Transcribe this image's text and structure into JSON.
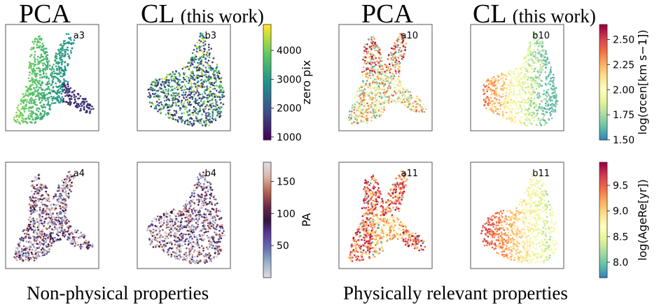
{
  "column_titles": [
    {
      "main": "PCA",
      "sub": ""
    },
    {
      "main": "CL",
      "sub": "(this work)"
    },
    {
      "main": "PCA",
      "sub": ""
    },
    {
      "main": "CL",
      "sub": "(this work)"
    }
  ],
  "captions": {
    "left": "Non-physical properties",
    "right": "Physically relevant properties"
  },
  "chart_data": [
    {
      "type": "scatter",
      "panel": "a3",
      "method": "PCA",
      "property": "zero pix",
      "shape": "pca",
      "colormap": "viridis",
      "clim": [
        900,
        4900
      ]
    },
    {
      "type": "scatter",
      "panel": "b3",
      "method": "CL",
      "property": "zero pix",
      "shape": "cl",
      "colormap": "viridis",
      "clim": [
        900,
        4900
      ]
    },
    {
      "type": "scatter",
      "panel": "a10",
      "method": "PCA",
      "property": "log(σ_cen [km s^-1])",
      "shape": "pca",
      "colormap": "spectral",
      "clim": [
        1.5,
        2.65
      ]
    },
    {
      "type": "scatter",
      "panel": "b10",
      "method": "CL",
      "property": "log(σ_cen [km s^-1])",
      "shape": "cl",
      "colormap": "spectral",
      "clim": [
        1.5,
        2.65
      ]
    },
    {
      "type": "scatter",
      "panel": "a4",
      "method": "PCA",
      "property": "PA",
      "shape": "pca",
      "colormap": "twilight",
      "clim": [
        0,
        180
      ]
    },
    {
      "type": "scatter",
      "panel": "b4",
      "method": "CL",
      "property": "PA",
      "shape": "cl",
      "colormap": "twilight",
      "clim": [
        0,
        180
      ]
    },
    {
      "type": "scatter",
      "panel": "a11",
      "method": "PCA",
      "property": "log(Age_Re [yr])",
      "shape": "pca",
      "colormap": "spectral",
      "clim": [
        7.7,
        9.95
      ]
    },
    {
      "type": "scatter",
      "panel": "b11",
      "method": "CL",
      "property": "log(Age_Re [yr])",
      "shape": "cl",
      "colormap": "spectral",
      "clim": [
        7.7,
        9.95
      ]
    }
  ],
  "colorbars": [
    {
      "id": "zero-pix",
      "label": "zero pix",
      "ticks": [
        "1000",
        "2000",
        "3000",
        "4000"
      ],
      "tick_values": [
        1000,
        2000,
        3000,
        4000
      ],
      "range": [
        900,
        4900
      ],
      "colormap": "viridis"
    },
    {
      "id": "sigma",
      "label": "log(σcen[km s−1])",
      "ticks": [
        "1.50",
        "1.75",
        "2.00",
        "2.25",
        "2.50"
      ],
      "tick_values": [
        1.5,
        1.75,
        2.0,
        2.25,
        2.5
      ],
      "range": [
        1.5,
        2.65
      ],
      "colormap": "spectral"
    },
    {
      "id": "pa",
      "label": "PA",
      "ticks": [
        "50",
        "100",
        "150"
      ],
      "tick_values": [
        50,
        100,
        150
      ],
      "range": [
        0,
        180
      ],
      "colormap": "twilight"
    },
    {
      "id": "age",
      "label": "log(AgeRe[yr])",
      "ticks": [
        "8.0",
        "8.5",
        "9.0",
        "9.5"
      ],
      "tick_values": [
        8.0,
        8.5,
        9.0,
        9.5
      ],
      "range": [
        7.7,
        9.95
      ],
      "colormap": "spectral"
    }
  ],
  "colormaps": {
    "viridis": [
      "#440154",
      "#3b528b",
      "#21918c",
      "#5ec962",
      "#fde725"
    ],
    "spectral": [
      "#3288bd",
      "#66c2a5",
      "#abdda4",
      "#e6f598",
      "#ffffbf",
      "#fee08b",
      "#fdae61",
      "#f46d43",
      "#d53e4f",
      "#9e0142"
    ],
    "twilight": [
      "#e2d9e2",
      "#9ab4c9",
      "#6673b0",
      "#5e3c99",
      "#30133d",
      "#6d2a4b",
      "#b3624c",
      "#d9b3a3",
      "#e2d9e2"
    ]
  }
}
